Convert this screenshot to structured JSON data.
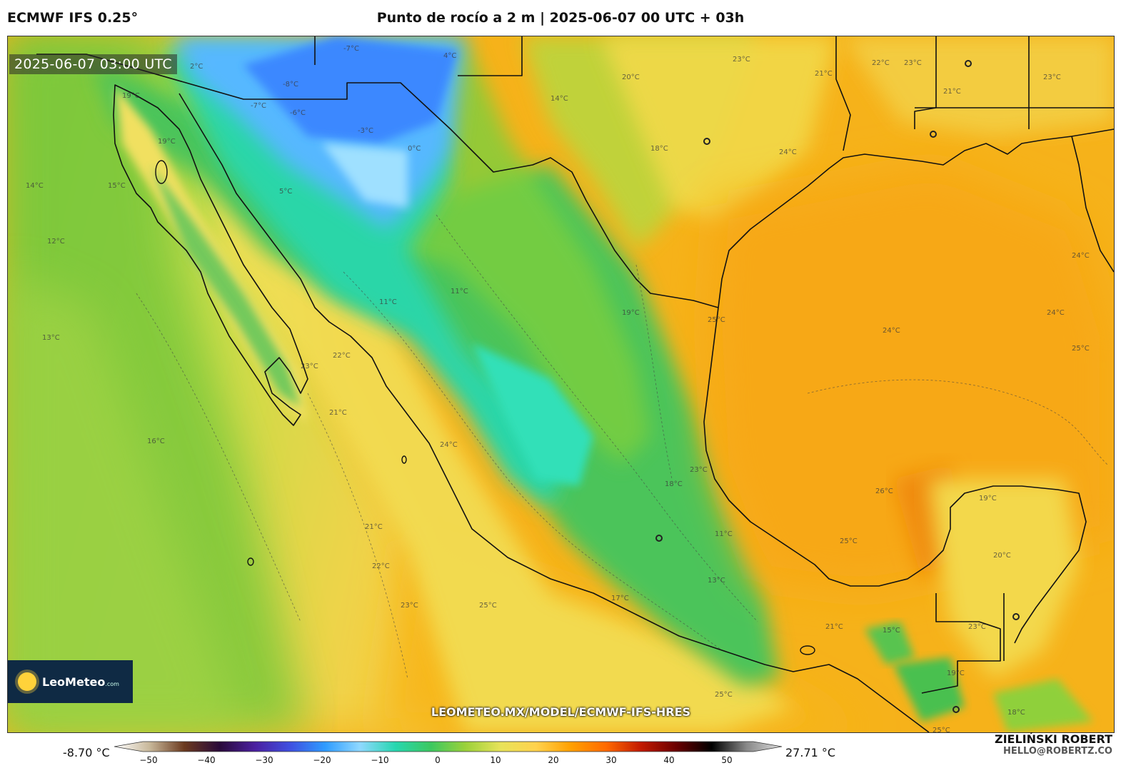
{
  "header": {
    "model": "ECMWF IFS 0.25°",
    "title": "Punto de rocío a 2 m | 2025-06-07 00 UTC + 03h"
  },
  "map": {
    "valid_time": "2025-06-07 03:00 UTC",
    "watermark_url": "LEOMETEO.MX/MODEL/ECMWF-IFS-HRES",
    "logo": {
      "name": "LeoMeteo",
      "suffix": ".com"
    },
    "contour_labels": [
      "19°C",
      "14°C",
      "15°C",
      "12°C",
      "13°C",
      "16°C",
      "21°C",
      "22°C",
      "23°C",
      "24°C",
      "25°C",
      "26°C",
      "20°C",
      "18°C",
      "17°C",
      "11°C",
      "-7°C",
      "-8°C",
      "-6°C",
      "-3°C",
      "0°C",
      "2°C",
      "5°C",
      "4°C"
    ]
  },
  "colorbar": {
    "min_label": "-8.70 °C",
    "max_label": "27.71 °C",
    "ticks": [
      "−50",
      "−40",
      "−30",
      "−20",
      "−10",
      "0",
      "10",
      "20",
      "30",
      "40",
      "50"
    ],
    "colors": [
      "#ffffff",
      "#c8b89a",
      "#6b3a1f",
      "#2a0a3a",
      "#4b1fa0",
      "#3f4fe0",
      "#2f9cff",
      "#8fd8ff",
      "#27d7b0",
      "#3cc860",
      "#9bd13a",
      "#e8e35a",
      "#ffd24d",
      "#ffa000",
      "#ff6a00",
      "#c21a00",
      "#6a0000",
      "#000000",
      "#888888",
      "#dddddd"
    ]
  },
  "credit": {
    "name": "ZIELIŃSKI ROBERT",
    "email": "HELLO@ROBERTZ.CO"
  }
}
